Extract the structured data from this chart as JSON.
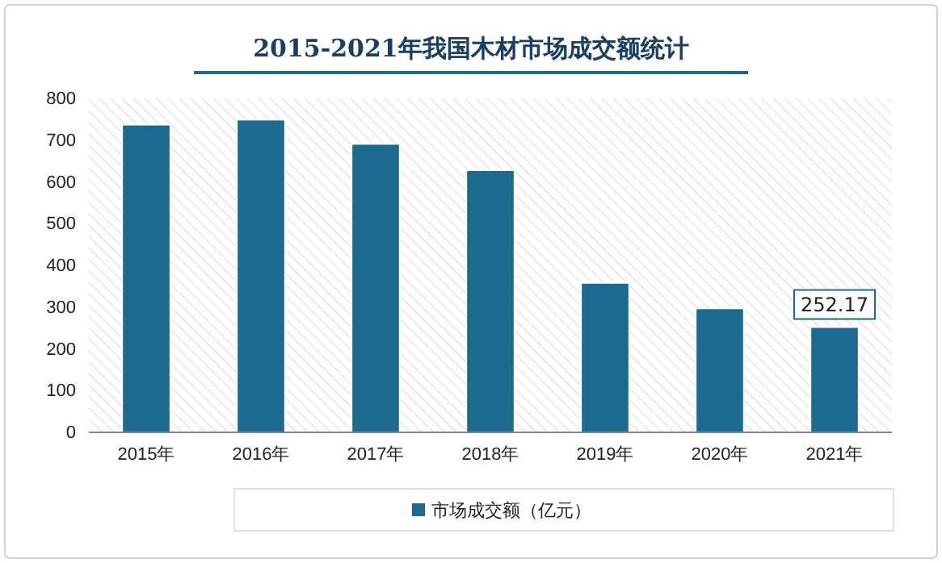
{
  "chart_data": {
    "type": "bar",
    "title": "2015-2021年我国木材市场成交额统计",
    "categories": [
      "2015年",
      "2016年",
      "2017年",
      "2018年",
      "2019年",
      "2020年",
      "2021年"
    ],
    "series": [
      {
        "name": "市场成交额（亿元）",
        "color": "#1c6b8e",
        "values": [
          737,
          749,
          691,
          628,
          358,
          297,
          252.17
        ],
        "value_labels": [
          null,
          null,
          null,
          null,
          null,
          null,
          "252.17"
        ]
      }
    ],
    "ylim": [
      0,
      800
    ],
    "yticks": [
      0,
      100,
      200,
      300,
      400,
      500,
      600,
      700,
      800
    ],
    "grid": false,
    "legend": "bottom"
  }
}
